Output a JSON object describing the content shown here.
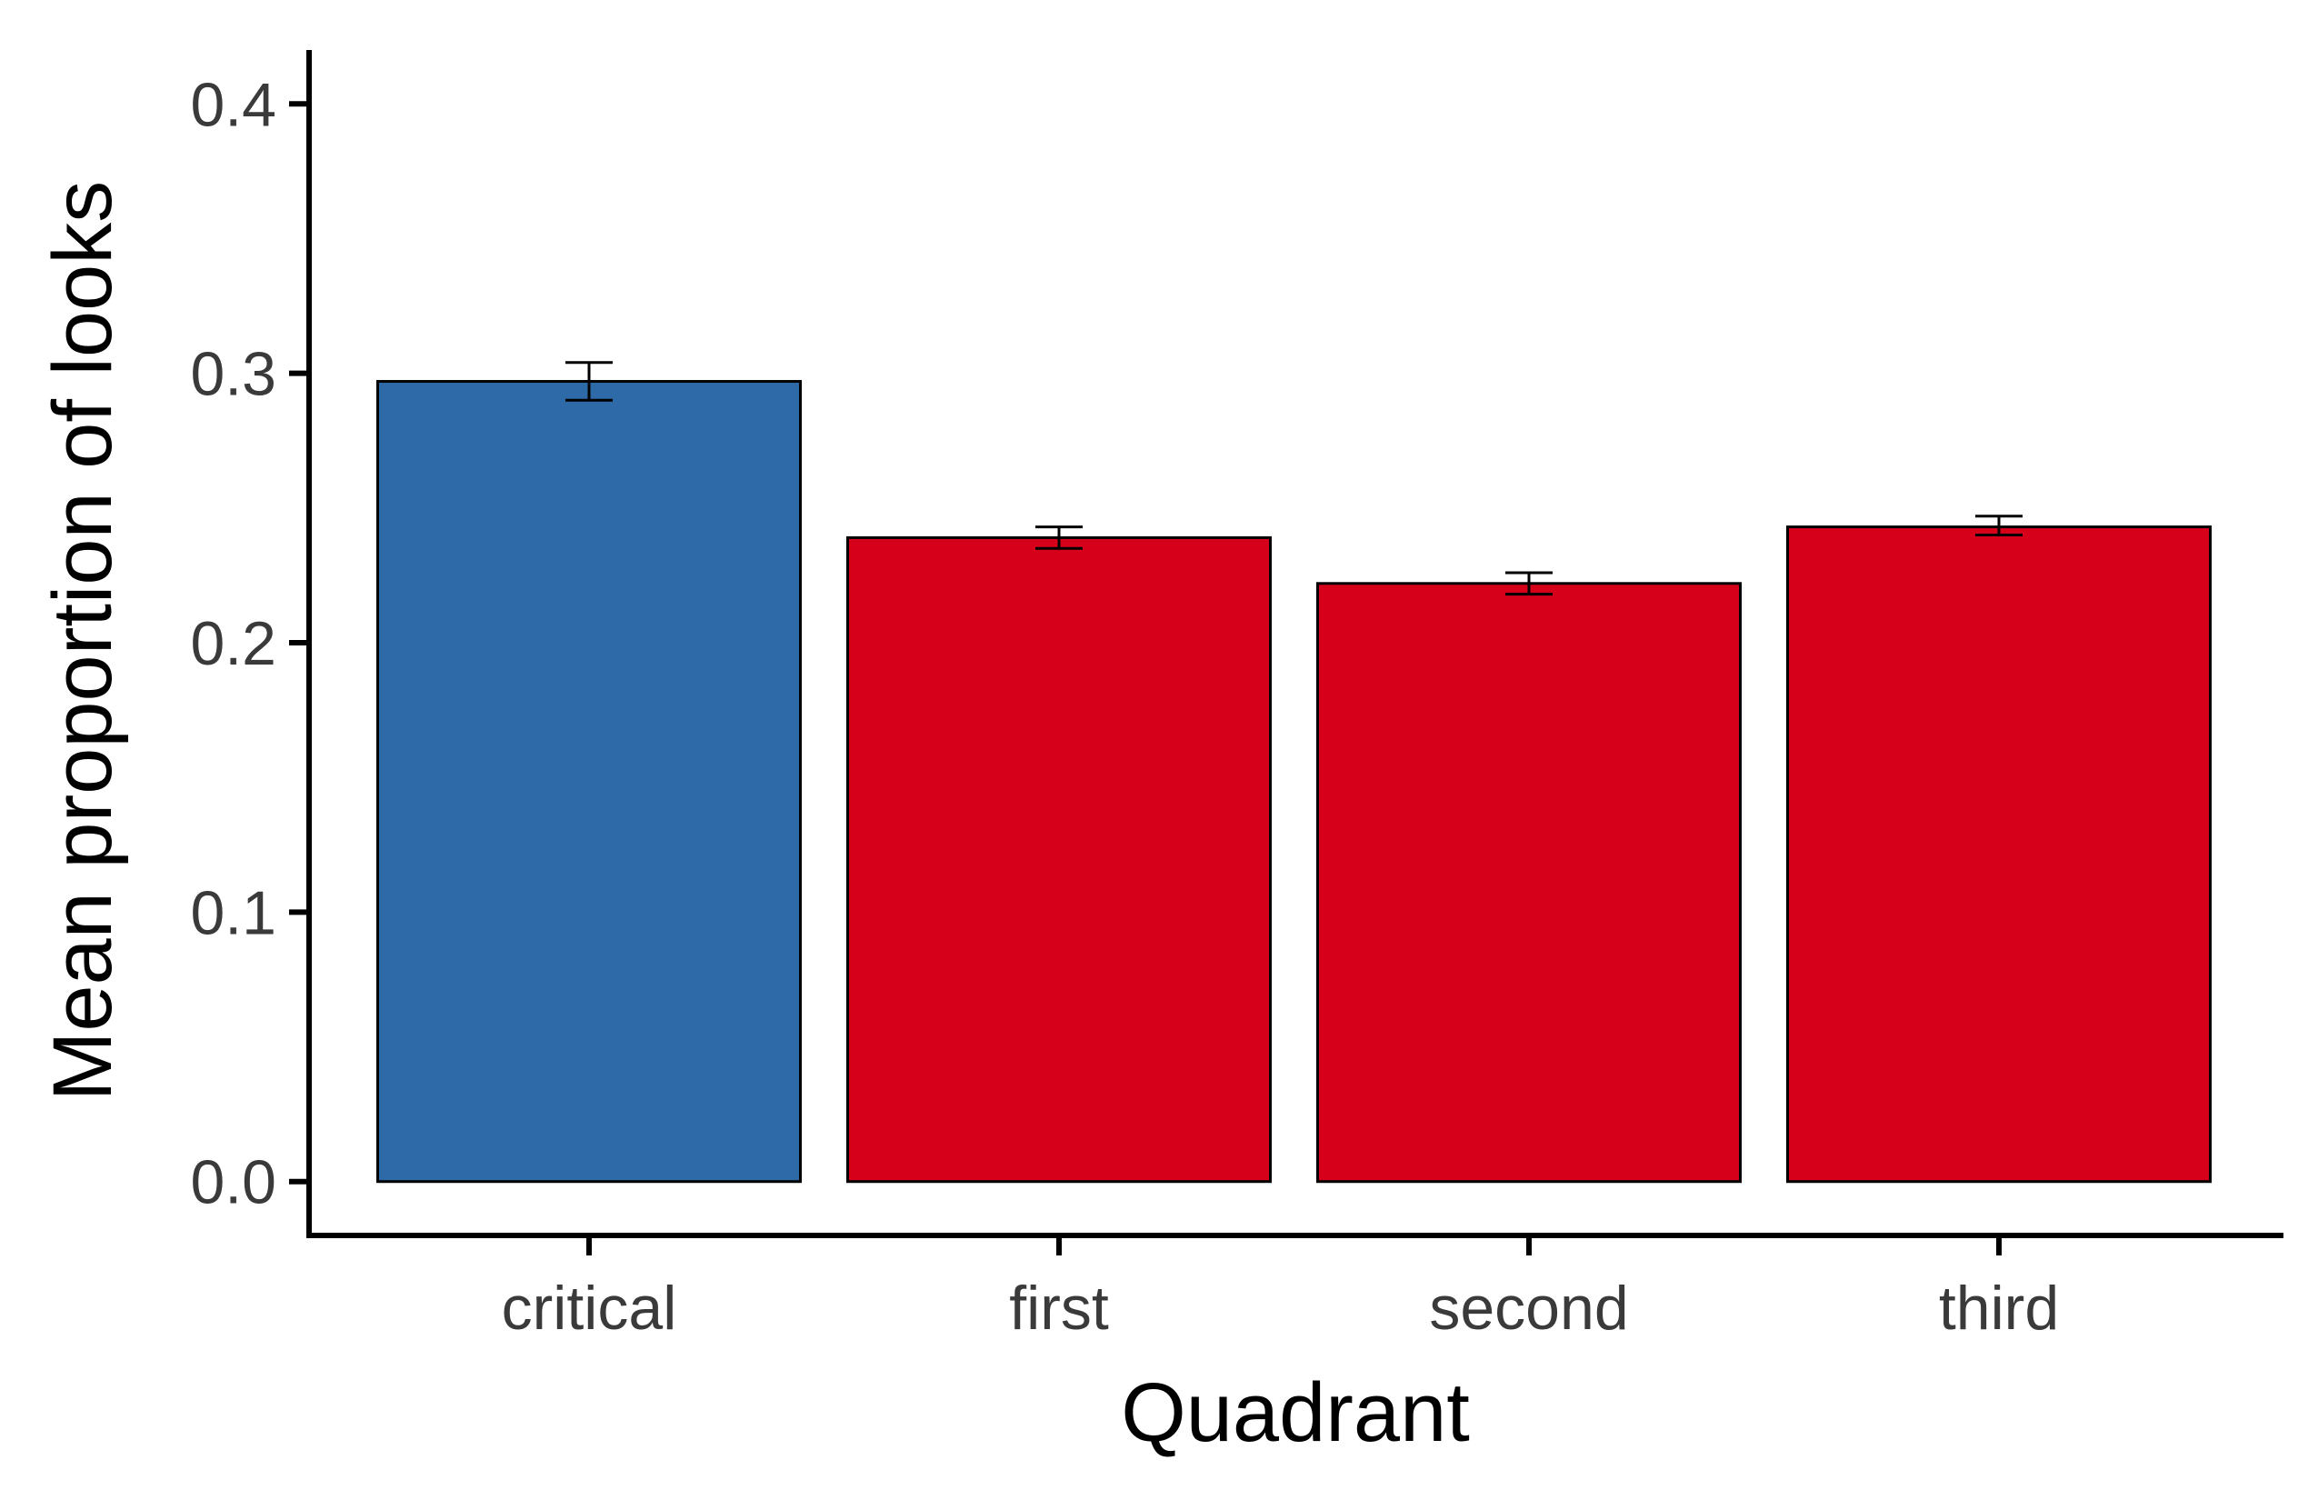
{
  "chart_data": {
    "type": "bar",
    "title": "",
    "xlabel": "Quadrant",
    "ylabel": "Mean proportion of looks",
    "categories": [
      "critical",
      "first",
      "second",
      "third"
    ],
    "values": [
      0.297,
      0.239,
      0.222,
      0.243
    ],
    "error_low": [
      0.29,
      0.235,
      0.218,
      0.24
    ],
    "error_high": [
      0.304,
      0.243,
      0.226,
      0.247
    ],
    "bar_colors": [
      "#2E6AA8",
      "#D7001A",
      "#D7001A",
      "#D7001A"
    ],
    "bar_outline": "#000000",
    "ylim": [
      -0.02,
      0.42
    ],
    "yticks": [
      0.0,
      0.1,
      0.2,
      0.3,
      0.4
    ],
    "ytick_labels": [
      "0.0",
      "0.1",
      "0.2",
      "0.3",
      "0.4"
    ],
    "grid": false,
    "legend": "none"
  }
}
